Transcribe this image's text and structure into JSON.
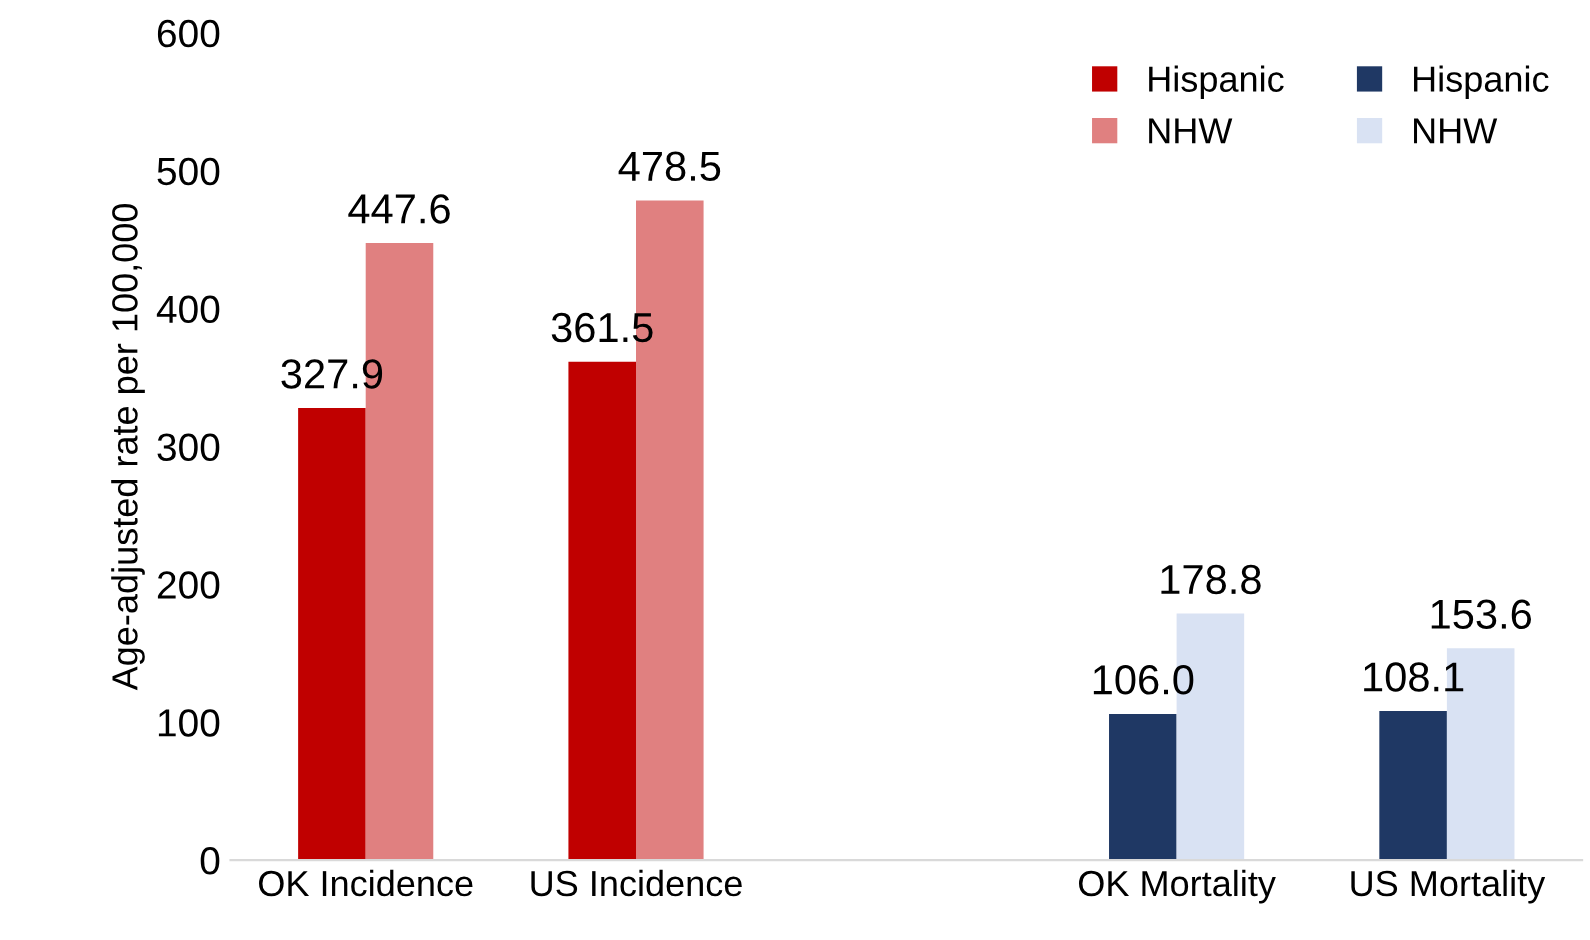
{
  "chart_data": {
    "type": "bar",
    "ylabel": "Age-adjusted rate per 100,000",
    "categories": [
      "OK Incidence",
      "US Incidence",
      null,
      "OK Mortality",
      "US Mortality"
    ],
    "series": [
      {
        "name": "Hispanic",
        "color": "#c00000",
        "values": [
          327.9,
          361.5,
          null,
          null,
          null
        ],
        "value_labels": [
          "327.9",
          "361.5",
          null,
          null,
          null
        ]
      },
      {
        "name": "NHW",
        "color": "#e08080",
        "values": [
          447.6,
          478.5,
          null,
          null,
          null
        ],
        "value_labels": [
          "447.6",
          "478.5",
          null,
          null,
          null
        ]
      },
      {
        "name": "Hispanic",
        "color": "#1f3864",
        "values": [
          null,
          null,
          null,
          106.0,
          108.1
        ],
        "value_labels": [
          null,
          null,
          null,
          "106.0",
          "108.1"
        ]
      },
      {
        "name": "NHW",
        "color": "#d9e2f3",
        "values": [
          null,
          null,
          null,
          178.8,
          153.6
        ],
        "value_labels": [
          null,
          null,
          null,
          "178.8",
          "153.6"
        ]
      }
    ],
    "ylim": [
      0,
      600
    ],
    "yticks": [
      0,
      100,
      200,
      300,
      400,
      500,
      600
    ],
    "grid": false,
    "legend": "top right"
  }
}
